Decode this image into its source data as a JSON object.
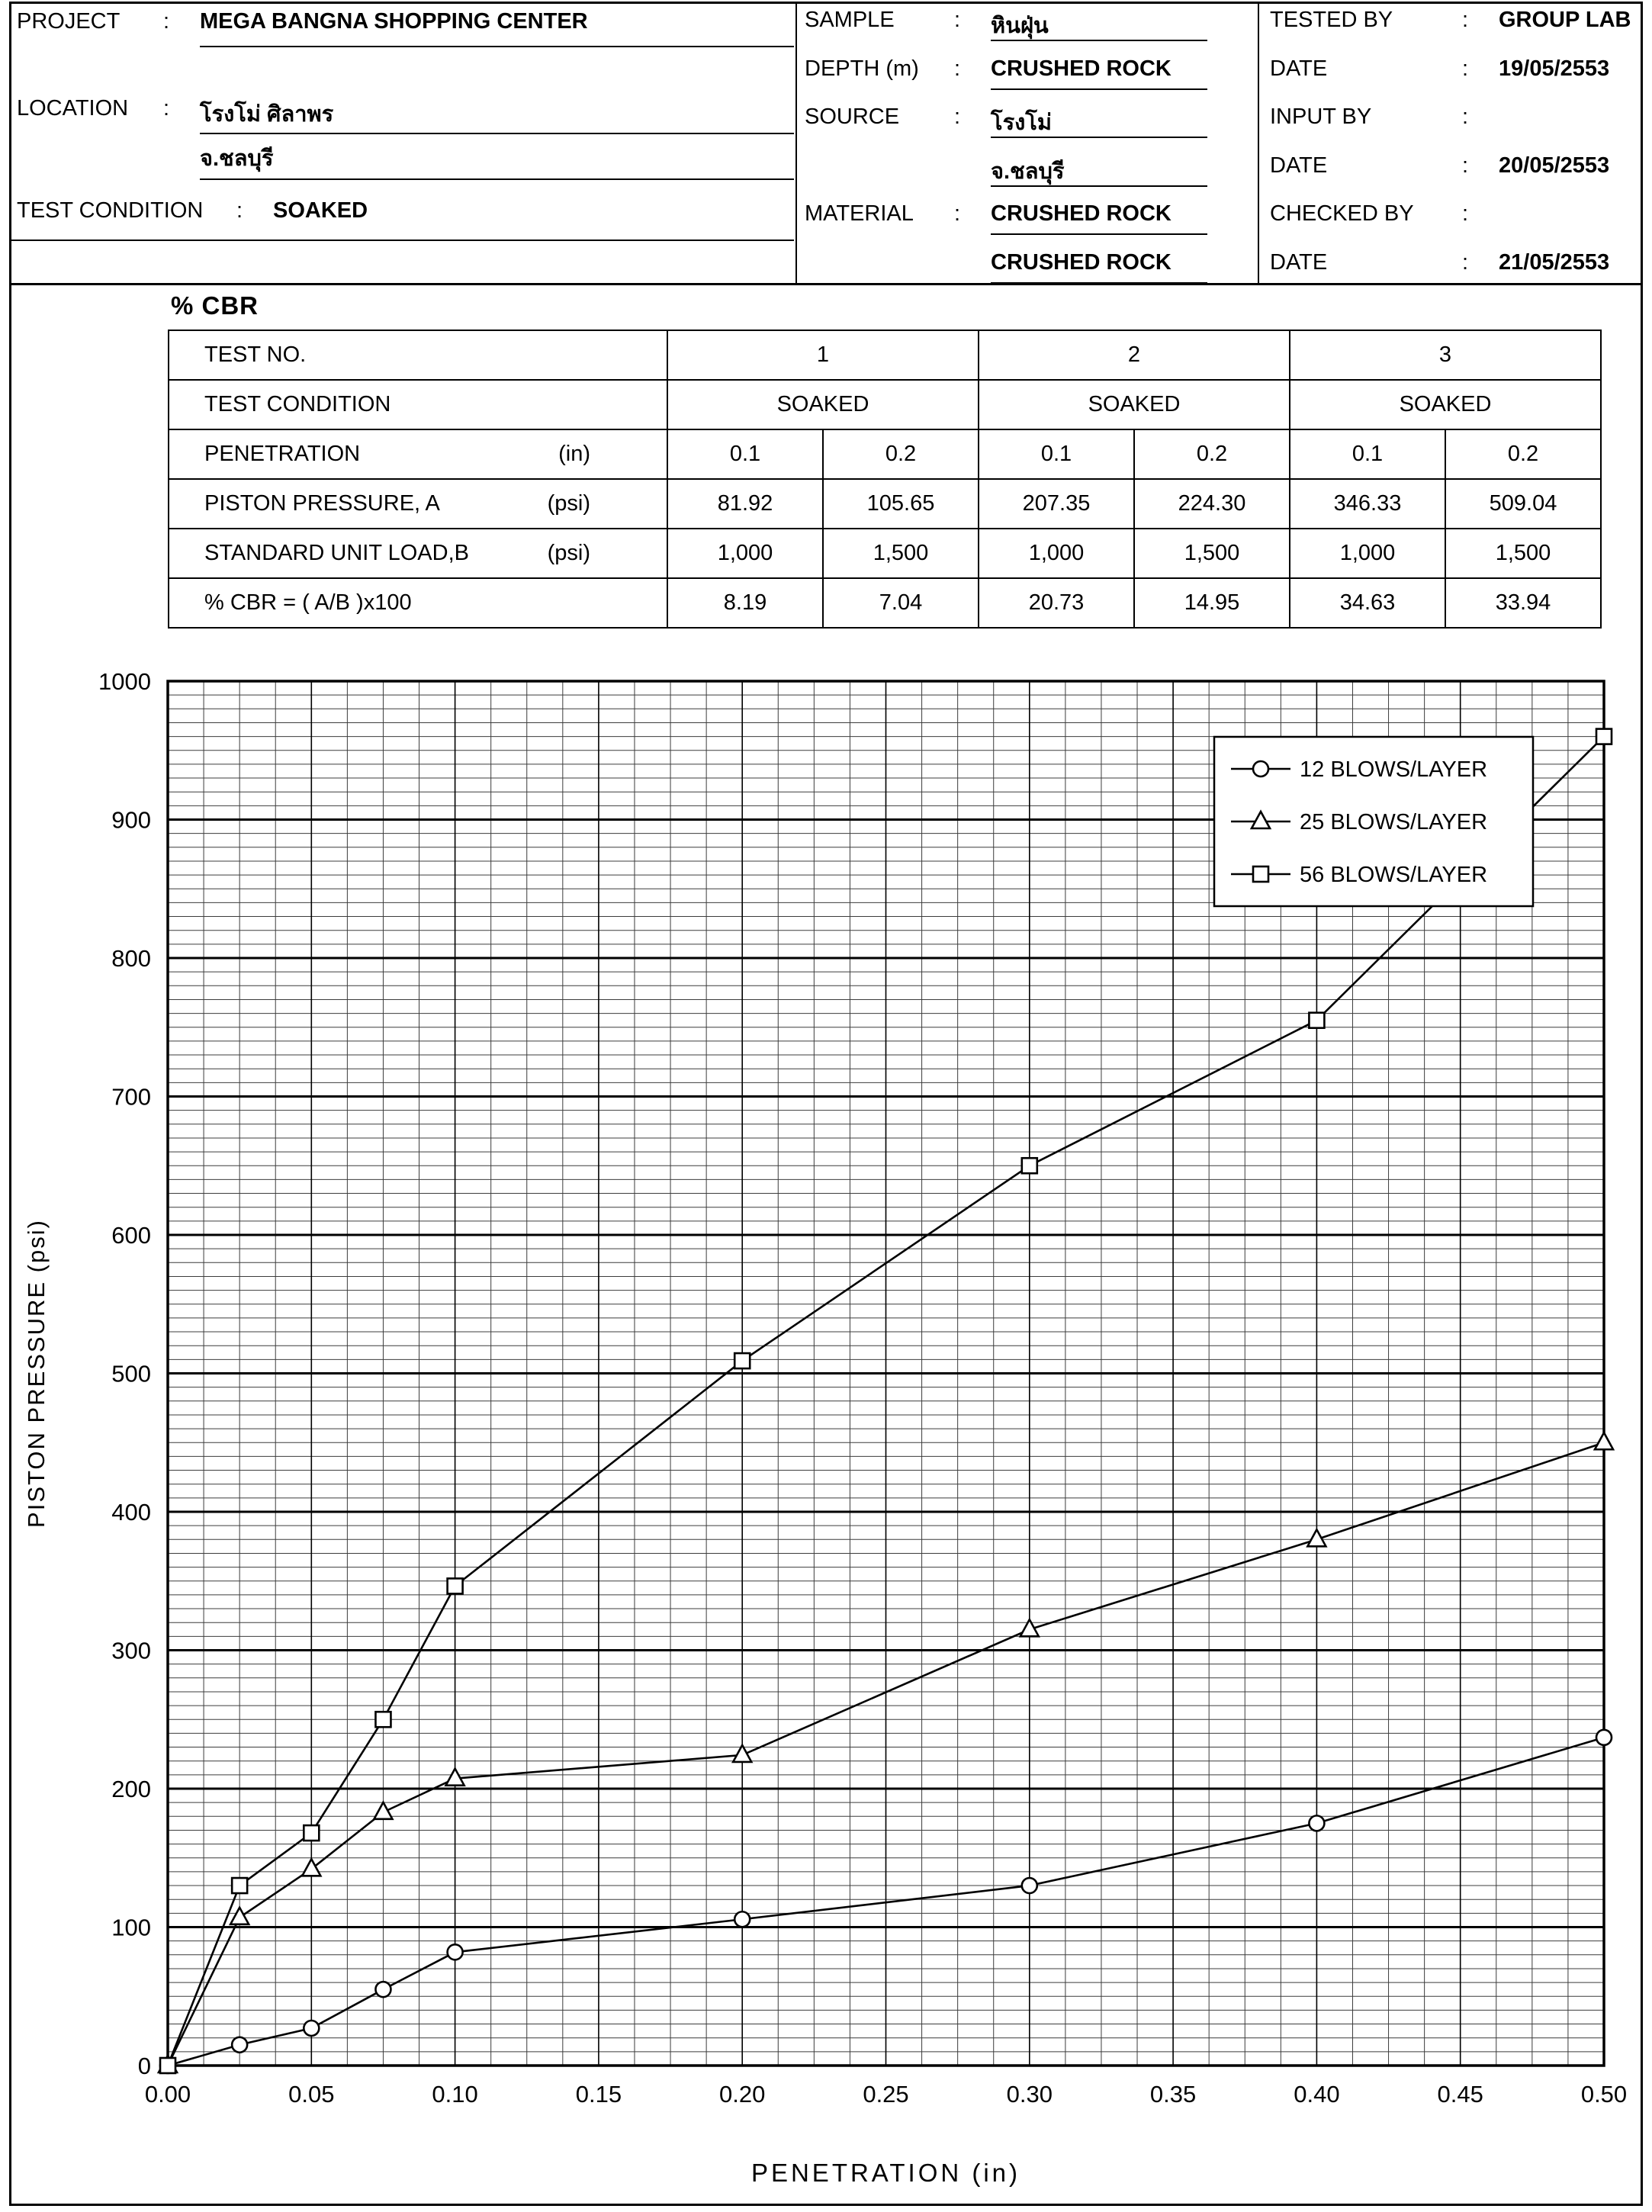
{
  "punct": {
    "colon": ":"
  },
  "header": {
    "project": {
      "label": "PROJECT",
      "value": "MEGA BANGNA SHOPPING CENTER"
    },
    "location": {
      "label": "LOCATION",
      "value_line1": "โรงโม่ ศิลาพร",
      "value_line2": "จ.ชลบุรี"
    },
    "test_condition": {
      "label": "TEST CONDITION",
      "value": "SOAKED"
    },
    "sample_block": {
      "rows": [
        {
          "label": "SAMPLE",
          "value": "หินฝุ่น"
        },
        {
          "label": "DEPTH (m)",
          "value": "CRUSHED ROCK"
        },
        {
          "label": "SOURCE",
          "value": "โรงโม่"
        },
        {
          "label": "",
          "value": "จ.ชลบุรี"
        },
        {
          "label": "MATERIAL",
          "value": "CRUSHED ROCK"
        },
        {
          "label": "",
          "value": "CRUSHED ROCK"
        }
      ]
    },
    "signoff_block": {
      "rows": [
        {
          "label": "TESTED BY",
          "value": "GROUP LAB"
        },
        {
          "label": "DATE",
          "value": "19/05/2553"
        },
        {
          "label": "INPUT  BY",
          "value": ""
        },
        {
          "label": "DATE",
          "value": "20/05/2553"
        },
        {
          "label": "CHECKED BY",
          "value": ""
        },
        {
          "label": "DATE",
          "value": "21/05/2553"
        }
      ]
    }
  },
  "cbr_table": {
    "title": "% CBR",
    "row_test_no": {
      "label": "TEST NO.",
      "values": [
        "1",
        "2",
        "3"
      ]
    },
    "row_condition": {
      "label": "TEST CONDITION",
      "values": [
        "SOAKED",
        "SOAKED",
        "SOAKED"
      ]
    },
    "rows": [
      {
        "label": "PENETRATION",
        "unit": "(in)",
        "values": [
          "0.1",
          "0.2",
          "0.1",
          "0.2",
          "0.1",
          "0.2"
        ]
      },
      {
        "label": "PISTON PRESSURE, A",
        "unit": "(psi)",
        "values": [
          "81.92",
          "105.65",
          "207.35",
          "224.30",
          "346.33",
          "509.04"
        ]
      },
      {
        "label": "STANDARD UNIT LOAD,B",
        "unit": "(psi)",
        "values": [
          "1,000",
          "1,500",
          "1,000",
          "1,500",
          "1,000",
          "1,500"
        ]
      },
      {
        "label": "% CBR = ( A/B )x100",
        "unit": "",
        "values": [
          "8.19",
          "7.04",
          "20.73",
          "14.95",
          "34.63",
          "33.94"
        ]
      }
    ]
  },
  "chart_data": {
    "type": "line",
    "title": "",
    "xlabel": "PENETRATION (in)",
    "ylabel": "PISTON PRESSURE  (psi)",
    "xlim": [
      0,
      0.5
    ],
    "ylim": [
      0,
      1000
    ],
    "x_major_step": 0.05,
    "x_minor_step": 0.0125,
    "y_major_step": 100,
    "y_minor_step": 10,
    "grid": true,
    "legend_position": "top-right",
    "x_tick_labels": [
      "0.00",
      "0.05",
      "0.10",
      "0.15",
      "0.20",
      "0.25",
      "0.30",
      "0.35",
      "0.40",
      "0.45",
      "0.50"
    ],
    "y_tick_labels": [
      "0",
      "100",
      "200",
      "300",
      "400",
      "500",
      "600",
      "700",
      "800",
      "900",
      "1000"
    ],
    "series": [
      {
        "name": "12 BLOWS/LAYER",
        "marker": "circle",
        "x": [
          0,
          0.025,
          0.05,
          0.075,
          0.1,
          0.2,
          0.3,
          0.4,
          0.5
        ],
        "y": [
          0,
          15,
          27,
          55,
          81.92,
          105.65,
          130,
          175,
          237
        ]
      },
      {
        "name": "25 BLOWS/LAYER",
        "marker": "triangle",
        "x": [
          0,
          0.025,
          0.05,
          0.075,
          0.1,
          0.2,
          0.3,
          0.4,
          0.5
        ],
        "y": [
          0,
          107,
          142,
          183,
          207.35,
          224.3,
          315,
          380,
          450
        ]
      },
      {
        "name": "56 BLOWS/LAYER",
        "marker": "square",
        "x": [
          0,
          0.025,
          0.05,
          0.075,
          0.1,
          0.2,
          0.3,
          0.4,
          0.5
        ],
        "y": [
          0,
          130,
          168,
          250,
          346.33,
          509.04,
          650,
          755,
          960
        ]
      }
    ]
  }
}
